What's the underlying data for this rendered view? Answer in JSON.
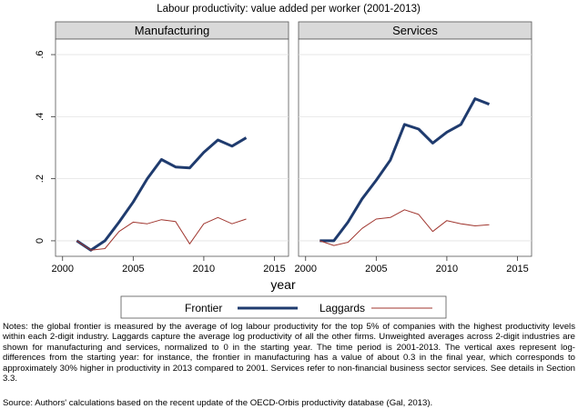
{
  "chart_data": {
    "type": "line",
    "title": "Labour productivity: value added per worker (2001-2013)",
    "xlabel": "year",
    "ylabel": "",
    "xlim": [
      1999.5,
      2016
    ],
    "ylim": [
      -0.05,
      0.65
    ],
    "x_ticks": [
      2000,
      2005,
      2010,
      2015
    ],
    "y_ticks": [
      0,
      0.2,
      0.4,
      0.6
    ],
    "x_tick_labels": [
      "2000",
      "2005",
      "2010",
      "2015"
    ],
    "y_tick_labels": [
      "0",
      ".2",
      ".4",
      ".6"
    ],
    "grid": true,
    "legend_position": "bottom",
    "legend": [
      "Frontier",
      "Laggards"
    ],
    "colors": {
      "Frontier": "#1f3b6e",
      "Laggards": "#a0362f"
    },
    "panels": [
      {
        "title": "Manufacturing",
        "x": [
          2001,
          2002,
          2003,
          2004,
          2005,
          2006,
          2007,
          2008,
          2009,
          2010,
          2011,
          2012,
          2013
        ],
        "series": [
          {
            "name": "Frontier",
            "values": [
              0.0,
              -0.03,
              0.0,
              0.06,
              0.125,
              0.2,
              0.262,
              0.238,
              0.235,
              0.285,
              0.325,
              0.305,
              0.332
            ]
          },
          {
            "name": "Laggards",
            "values": [
              0.0,
              -0.03,
              -0.025,
              0.03,
              0.06,
              0.055,
              0.068,
              0.062,
              -0.01,
              0.055,
              0.075,
              0.055,
              0.07
            ]
          }
        ]
      },
      {
        "title": "Services",
        "x": [
          2001,
          2002,
          2003,
          2004,
          2005,
          2006,
          2007,
          2008,
          2009,
          2010,
          2011,
          2012,
          2013
        ],
        "series": [
          {
            "name": "Frontier",
            "values": [
              0.0,
              0.0,
              0.06,
              0.135,
              0.195,
              0.26,
              0.375,
              0.36,
              0.315,
              0.35,
              0.375,
              0.458,
              0.44
            ]
          },
          {
            "name": "Laggards",
            "values": [
              0.0,
              -0.015,
              -0.005,
              0.04,
              0.07,
              0.075,
              0.1,
              0.085,
              0.03,
              0.065,
              0.055,
              0.048,
              0.052
            ]
          }
        ]
      }
    ]
  },
  "notes": "Notes: the global frontier is measured by the average of log labour productivity for the top 5% of companies with the highest productivity levels within each 2-digit industry. Laggards capture the average log productivity of all the other firms. Unweighted averages across 2-digit industries are shown for manufacturing and services, normalized to 0 in the starting year. The time period is 2001-2013. The vertical axes represent log-differences from the starting year: for instance, the frontier in manufacturing has a value of about 0.3 in the final year, which corresponds to approximately 30% higher in productivity in 2013 compared to 2001. Services refer to non-financial business sector services. See details in Section 3.3.",
  "source": "Source: Authors' calculations based on the recent update of the OECD-Orbis productivity database (Gal, 2013)."
}
